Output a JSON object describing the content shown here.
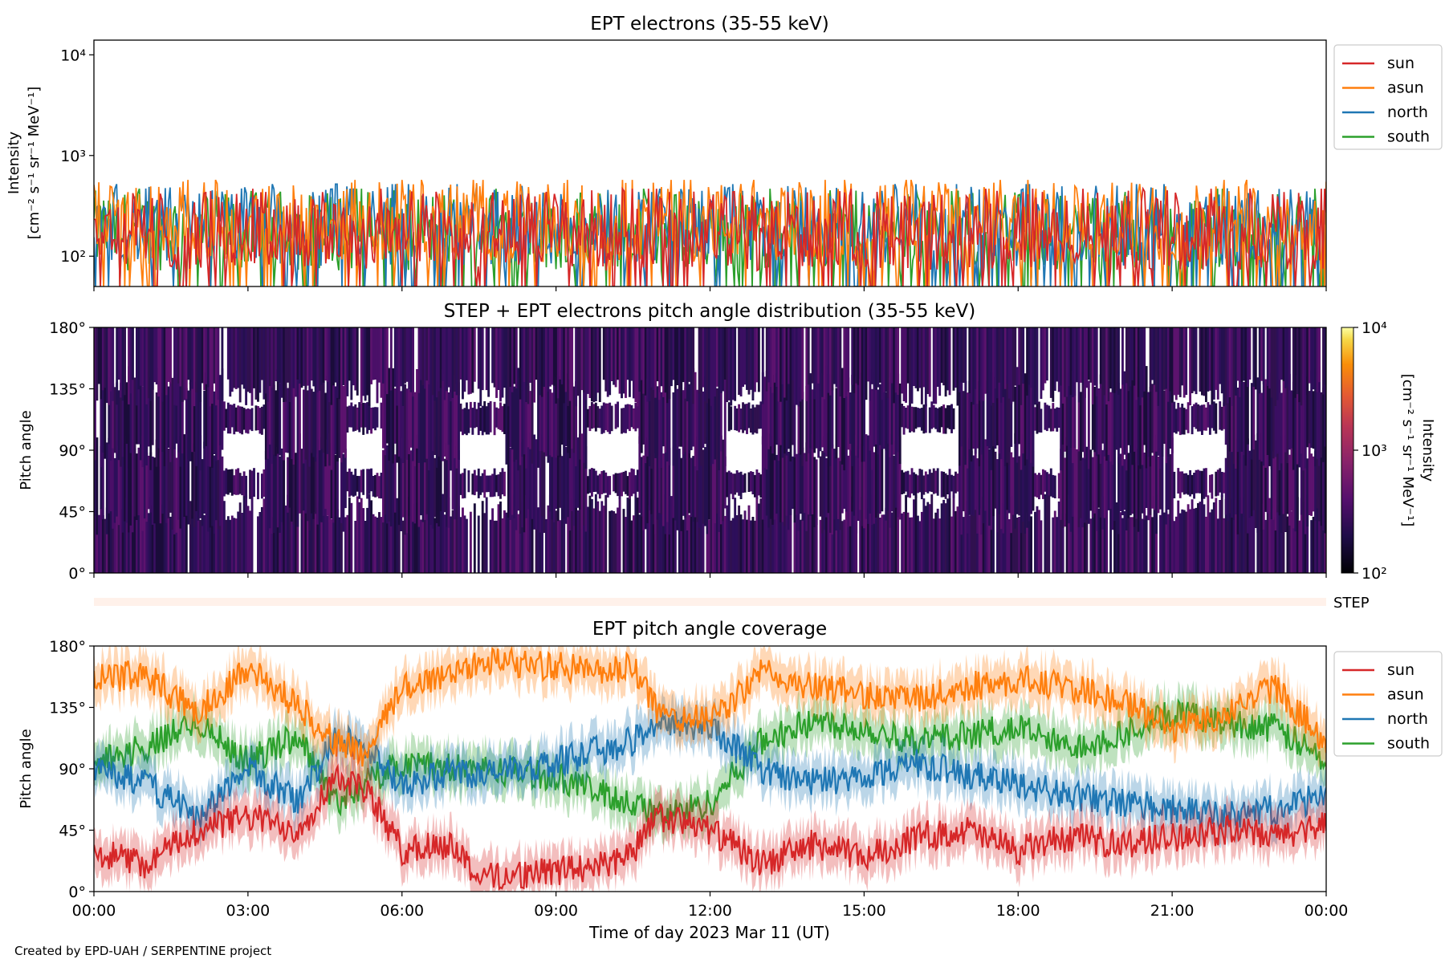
{
  "figure": {
    "footer": "Created by EPD-UAH / SERPENTINE project",
    "xlabel": "Time of day 2023 Mar 11 (UT)",
    "x_ticks": [
      "00:00",
      "03:00",
      "06:00",
      "09:00",
      "12:00",
      "15:00",
      "18:00",
      "21:00",
      "00:00"
    ]
  },
  "colors": {
    "sun": "#d62728",
    "asun": "#ff7f0e",
    "north": "#1f77b4",
    "south": "#2ca02c",
    "step_band": "#fff1ea"
  },
  "chart_data": [
    {
      "type": "line",
      "title": "EPT electrons (35-55 keV)",
      "ylabel": "Intensity",
      "ylabel_units": "[cm⁻² s⁻¹ sr⁻¹ MeV⁻¹]",
      "yscale": "log",
      "ylim": [
        50,
        14000
      ],
      "y_ticks": [
        100,
        1000,
        10000
      ],
      "y_tick_labels": [
        "10²",
        "10³",
        "10⁴"
      ],
      "x_range_hours": [
        0,
        24
      ],
      "legend": "outside-right",
      "series": [
        {
          "name": "sun",
          "typical": 180,
          "min": 50,
          "max": 700
        },
        {
          "name": "asun",
          "typical": 220,
          "min": 50,
          "max": 700
        },
        {
          "name": "north",
          "typical": 200,
          "min": 50,
          "max": 800
        },
        {
          "name": "south",
          "typical": 180,
          "min": 50,
          "max": 750
        }
      ]
    },
    {
      "type": "heatmap",
      "title": "STEP + EPT electrons pitch angle distribution (35-55 keV)",
      "ylabel": "Pitch angle",
      "ylim": [
        0,
        180
      ],
      "y_tick_labels": [
        "0°",
        "45°",
        "90°",
        "135°",
        "180°"
      ],
      "colorbar": {
        "label": "Intensity",
        "units": "[cm⁻² s⁻¹ sr⁻¹ MeV⁻¹]",
        "scale": "log",
        "range": [
          100,
          10000
        ],
        "tick_labels": [
          "10²",
          "10³",
          "10⁴"
        ],
        "colormap": "inferno"
      }
    },
    {
      "type": "bar",
      "title": "",
      "label": "STEP"
    },
    {
      "type": "area",
      "title": "EPT pitch angle coverage",
      "ylabel": "Pitch angle",
      "ylim": [
        0,
        180
      ],
      "y_tick_labels": [
        "0°",
        "45°",
        "90°",
        "135°",
        "180°"
      ],
      "x_range_hours": [
        0,
        24
      ],
      "legend": "outside-right",
      "series": [
        {
          "name": "sun",
          "x": [
            0,
            1,
            2,
            3,
            4,
            4.7,
            5.3,
            6,
            7,
            7.5,
            9,
            10,
            10.5,
            11,
            12,
            13,
            14,
            15,
            16,
            17,
            18,
            19,
            20,
            21,
            22,
            23,
            24
          ],
          "values": [
            30,
            20,
            45,
            55,
            45,
            85,
            75,
            30,
            35,
            10,
            15,
            20,
            30,
            55,
            45,
            20,
            35,
            25,
            40,
            45,
            30,
            40,
            35,
            40,
            45,
            40,
            50
          ]
        },
        {
          "name": "asun",
          "x": [
            0,
            1,
            2,
            3,
            4,
            4.7,
            5.3,
            6,
            7,
            7.5,
            9,
            10,
            10.5,
            11,
            12,
            13,
            14,
            15,
            16,
            17,
            18,
            19,
            20,
            21,
            22,
            23,
            24
          ],
          "values": [
            155,
            160,
            130,
            165,
            135,
            110,
            100,
            150,
            160,
            170,
            165,
            160,
            165,
            130,
            125,
            160,
            150,
            145,
            140,
            150,
            155,
            150,
            140,
            120,
            130,
            150,
            110
          ]
        },
        {
          "name": "north",
          "x": [
            0,
            1,
            2,
            3,
            4,
            4.7,
            5.3,
            6,
            7,
            7.5,
            9,
            10,
            10.5,
            11,
            12,
            13,
            14,
            15,
            16,
            17,
            18,
            19,
            20,
            21,
            22,
            23,
            24
          ],
          "values": [
            90,
            80,
            55,
            90,
            65,
            115,
            105,
            75,
            90,
            85,
            95,
            105,
            110,
            125,
            120,
            90,
            80,
            85,
            95,
            85,
            80,
            70,
            65,
            60,
            55,
            60,
            70
          ]
        },
        {
          "name": "south",
          "x": [
            0,
            1,
            2,
            3,
            4,
            4.7,
            5.3,
            6,
            7,
            7.5,
            9,
            10,
            10.5,
            11,
            12,
            13,
            14,
            15,
            16,
            17,
            18,
            19,
            20,
            21,
            22,
            23,
            24
          ],
          "values": [
            95,
            105,
            125,
            95,
            115,
            65,
            80,
            95,
            90,
            90,
            85,
            70,
            65,
            55,
            65,
            110,
            125,
            120,
            110,
            115,
            120,
            105,
            115,
            130,
            125,
            120,
            95
          ]
        }
      ]
    }
  ]
}
